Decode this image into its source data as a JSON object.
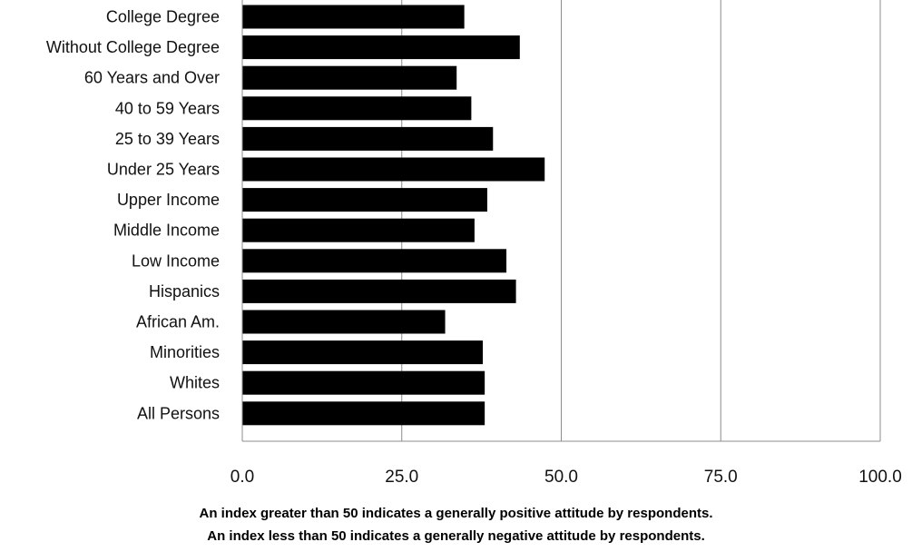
{
  "chart_data": {
    "type": "bar",
    "orientation": "horizontal",
    "categories": [
      "College Degree",
      "Without College Degree",
      "60 Years and Over",
      "40 to 59 Years",
      "25 to 39 Years",
      "Under 25 Years",
      "Upper Income",
      "Middle Income",
      "Low Income",
      "Hispanics",
      "African Am.",
      "Minorities",
      "Whites",
      "All Persons"
    ],
    "values": [
      34.8,
      43.5,
      33.6,
      35.9,
      39.3,
      47.4,
      38.4,
      36.4,
      41.4,
      42.9,
      31.8,
      37.7,
      38.0,
      38.0
    ],
    "xlim": [
      0,
      100
    ],
    "xticks": [
      "0.0",
      "25.0",
      "50.0",
      "75.0",
      "100.0"
    ],
    "xtick_values": [
      0,
      25,
      50,
      75,
      100
    ],
    "grid": "vertical",
    "bar_color": "#000000",
    "title": "",
    "xlabel": "",
    "ylabel": "",
    "notes": [
      "An index greater than 50 indicates a generally positive attitude by respondents.",
      "An index less than 50 indicates a generally negative attitude by respondents."
    ]
  }
}
